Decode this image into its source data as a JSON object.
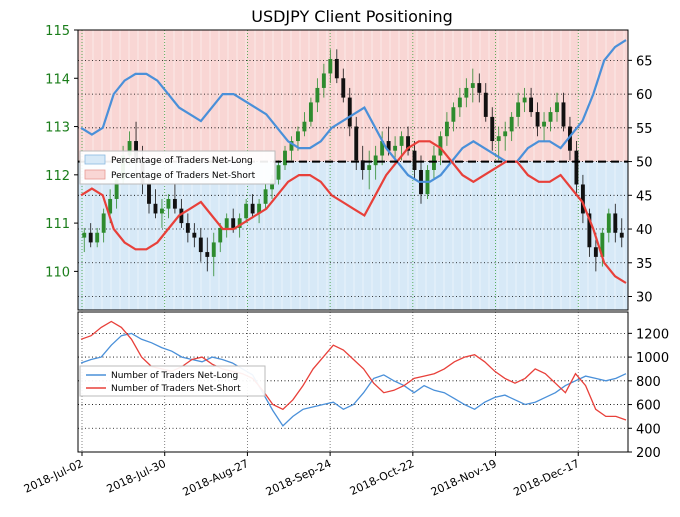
{
  "title": "USDJPY Client Positioning",
  "colors": {
    "price_axis": "#1a7d1a",
    "candle_up": "#2e8b2e",
    "candle_down": "#111111",
    "long_line": "#4a90d9",
    "short_line": "#e8403a",
    "long_fill": "#d7e9f7",
    "short_fill": "#f9d6d4"
  },
  "chart_data": [
    {
      "type": "line",
      "panel": "top",
      "y_left_ticks": [
        "115",
        "114",
        "113",
        "112",
        "111",
        "110"
      ],
      "y_left_range": [
        109.2,
        115.0
      ],
      "y_right_ticks": [
        "65",
        "60",
        "55",
        "50",
        "45",
        "40",
        "35",
        "30"
      ],
      "y_right_range": [
        28,
        69.5
      ],
      "reference_line": 50,
      "legend_position": "center-left",
      "series": [
        {
          "name": "Percentage of Traders Net-Long",
          "values": [
            55,
            54,
            55,
            60,
            62,
            63,
            63,
            62,
            60,
            58,
            57,
            56,
            58,
            60,
            60,
            59,
            58,
            57,
            55,
            53,
            52,
            52,
            53,
            55,
            56,
            57,
            58,
            55,
            52,
            50,
            48,
            47,
            47,
            48,
            50,
            52,
            53,
            52,
            51,
            50,
            50,
            52,
            53,
            53,
            52,
            54,
            56,
            60,
            65,
            67,
            68
          ]
        },
        {
          "name": "Percentage of Traders Net-Short",
          "values": [
            45,
            46,
            45,
            40,
            38,
            37,
            37,
            38,
            40,
            42,
            43,
            44,
            42,
            40,
            40,
            41,
            42,
            43,
            45,
            47,
            48,
            48,
            47,
            45,
            44,
            43,
            42,
            45,
            48,
            50,
            52,
            53,
            53,
            52,
            50,
            48,
            47,
            48,
            49,
            50,
            50,
            48,
            47,
            47,
            48,
            46,
            44,
            40,
            35,
            33,
            32
          ]
        }
      ],
      "price_candles": [
        [
          110.7,
          110.9,
          110.4,
          110.8
        ],
        [
          110.8,
          111.0,
          110.5,
          110.6
        ],
        [
          110.6,
          110.9,
          110.5,
          110.8
        ],
        [
          110.8,
          111.3,
          110.6,
          111.2
        ],
        [
          111.2,
          111.7,
          111.0,
          111.5
        ],
        [
          111.5,
          112.0,
          111.3,
          111.9
        ],
        [
          111.9,
          112.6,
          111.8,
          112.4
        ],
        [
          112.4,
          112.9,
          112.2,
          112.7
        ],
        [
          112.7,
          113.1,
          112.0,
          112.3
        ],
        [
          112.3,
          112.6,
          111.6,
          111.8
        ],
        [
          111.8,
          112.0,
          111.2,
          111.4
        ],
        [
          111.4,
          111.7,
          111.1,
          111.2
        ],
        [
          111.2,
          111.5,
          110.9,
          111.3
        ],
        [
          111.3,
          111.6,
          111.1,
          111.5
        ],
        [
          111.5,
          111.8,
          111.2,
          111.3
        ],
        [
          111.3,
          111.5,
          110.9,
          111.0
        ],
        [
          111.0,
          111.2,
          110.6,
          110.8
        ],
        [
          110.8,
          111.0,
          110.5,
          110.7
        ],
        [
          110.7,
          110.9,
          110.2,
          110.4
        ],
        [
          110.4,
          110.7,
          110.0,
          110.3
        ],
        [
          110.3,
          110.8,
          109.9,
          110.6
        ],
        [
          110.6,
          111.0,
          110.4,
          110.9
        ],
        [
          110.9,
          111.2,
          110.7,
          111.1
        ],
        [
          111.1,
          111.3,
          110.8,
          110.9
        ],
        [
          110.9,
          111.2,
          110.7,
          111.1
        ],
        [
          111.1,
          111.5,
          111.0,
          111.4
        ],
        [
          111.4,
          111.6,
          111.1,
          111.2
        ],
        [
          111.2,
          111.5,
          111.0,
          111.4
        ],
        [
          111.4,
          111.8,
          111.3,
          111.7
        ],
        [
          111.7,
          112.0,
          111.5,
          111.9
        ],
        [
          111.9,
          112.3,
          111.8,
          112.2
        ],
        [
          112.2,
          112.6,
          112.1,
          112.5
        ],
        [
          112.5,
          112.8,
          112.3,
          112.7
        ],
        [
          112.7,
          113.0,
          112.5,
          112.9
        ],
        [
          112.9,
          113.3,
          112.8,
          113.1
        ],
        [
          113.1,
          113.6,
          113.0,
          113.5
        ],
        [
          113.5,
          114.0,
          113.3,
          113.8
        ],
        [
          113.8,
          114.3,
          113.6,
          114.1
        ],
        [
          114.1,
          114.6,
          113.9,
          114.4
        ],
        [
          114.4,
          114.6,
          113.9,
          114.0
        ],
        [
          114.0,
          114.2,
          113.5,
          113.6
        ],
        [
          113.6,
          113.8,
          112.8,
          113.0
        ],
        [
          113.0,
          113.2,
          112.1,
          112.3
        ],
        [
          112.3,
          112.6,
          111.9,
          112.1
        ],
        [
          112.1,
          112.5,
          111.7,
          112.2
        ],
        [
          112.2,
          112.6,
          111.9,
          112.4
        ],
        [
          112.4,
          112.9,
          112.2,
          112.7
        ],
        [
          112.7,
          113.0,
          112.4,
          112.5
        ],
        [
          112.5,
          112.8,
          112.2,
          112.6
        ],
        [
          112.6,
          112.9,
          112.3,
          112.8
        ],
        [
          112.8,
          113.0,
          112.4,
          112.5
        ],
        [
          112.5,
          112.7,
          111.9,
          112.1
        ],
        [
          112.1,
          112.4,
          111.4,
          111.6
        ],
        [
          111.6,
          112.2,
          111.5,
          112.1
        ],
        [
          112.1,
          112.6,
          111.9,
          112.4
        ],
        [
          112.4,
          112.9,
          112.2,
          112.8
        ],
        [
          112.8,
          113.3,
          112.6,
          113.1
        ],
        [
          113.1,
          113.5,
          112.9,
          113.4
        ],
        [
          113.4,
          113.8,
          113.2,
          113.6
        ],
        [
          113.6,
          114.0,
          113.4,
          113.8
        ],
        [
          113.8,
          114.2,
          113.5,
          113.9
        ],
        [
          113.9,
          114.1,
          113.5,
          113.7
        ],
        [
          113.7,
          113.9,
          113.1,
          113.2
        ],
        [
          113.2,
          113.4,
          112.5,
          112.7
        ],
        [
          112.7,
          113.0,
          112.3,
          112.8
        ],
        [
          112.8,
          113.1,
          112.5,
          112.9
        ],
        [
          112.9,
          113.3,
          112.7,
          113.2
        ],
        [
          113.2,
          113.7,
          113.0,
          113.5
        ],
        [
          113.5,
          113.8,
          113.3,
          113.6
        ],
        [
          113.6,
          113.8,
          113.2,
          113.3
        ],
        [
          113.3,
          113.5,
          112.8,
          113.0
        ],
        [
          113.0,
          113.3,
          112.7,
          113.1
        ],
        [
          113.1,
          113.4,
          112.9,
          113.3
        ],
        [
          113.3,
          113.7,
          113.1,
          113.5
        ],
        [
          113.5,
          113.7,
          112.9,
          113.0
        ],
        [
          113.0,
          113.2,
          112.3,
          112.5
        ],
        [
          112.5,
          112.7,
          111.6,
          111.8
        ],
        [
          111.8,
          112.0,
          111.0,
          111.2
        ],
        [
          111.2,
          111.3,
          110.3,
          110.5
        ],
        [
          110.5,
          110.8,
          110.0,
          110.3
        ],
        [
          110.3,
          110.9,
          110.1,
          110.8
        ],
        [
          110.8,
          111.3,
          110.6,
          111.2
        ],
        [
          111.2,
          111.4,
          110.6,
          110.8
        ],
        [
          110.8,
          111.1,
          110.5,
          110.7
        ]
      ]
    },
    {
      "type": "line",
      "panel": "bottom",
      "y_right_ticks": [
        "1200",
        "1000",
        "800",
        "600",
        "400",
        "200"
      ],
      "y_right_range": [
        200,
        1380
      ],
      "legend_position": "center-left",
      "series": [
        {
          "name": "Number of Traders Net-Long",
          "values": [
            950,
            980,
            1000,
            1100,
            1180,
            1200,
            1150,
            1120,
            1080,
            1050,
            1000,
            980,
            960,
            1000,
            980,
            950,
            900,
            850,
            700,
            550,
            420,
            500,
            560,
            580,
            600,
            620,
            560,
            600,
            700,
            820,
            850,
            800,
            760,
            700,
            760,
            720,
            700,
            650,
            600,
            560,
            620,
            660,
            680,
            640,
            600,
            620,
            660,
            700,
            760,
            800,
            840,
            820,
            800,
            820,
            860
          ]
        },
        {
          "name": "Number of Traders Net-Short",
          "values": [
            1150,
            1180,
            1250,
            1300,
            1250,
            1150,
            1000,
            920,
            900,
            880,
            920,
            980,
            1000,
            940,
            900,
            880,
            860,
            820,
            720,
            600,
            560,
            640,
            760,
            900,
            1000,
            1100,
            1060,
            980,
            900,
            780,
            700,
            720,
            760,
            820,
            840,
            860,
            900,
            960,
            1000,
            1020,
            960,
            880,
            820,
            780,
            820,
            900,
            860,
            780,
            700,
            860,
            760,
            560,
            500,
            500,
            470
          ]
        }
      ]
    }
  ],
  "x_axis": {
    "tick_labels": [
      "2018-Jul-02",
      "2018-Jul-30",
      "2018-Aug-27",
      "2018-Sep-24",
      "2018-Oct-22",
      "2018-Nov-19",
      "2018-Dec-17"
    ]
  },
  "legend_top": {
    "long_label": "Percentage of Traders Net-Long",
    "short_label": "Percentage of Traders Net-Short"
  },
  "legend_bottom": {
    "long_label": "Number of Traders Net-Long",
    "short_label": "Number of Traders Net-Short"
  }
}
